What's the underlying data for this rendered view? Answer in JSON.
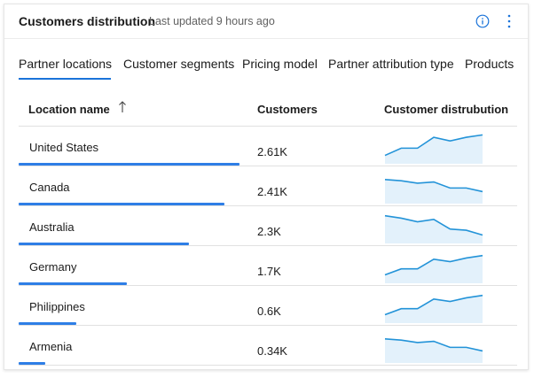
{
  "header": {
    "title": "Customers distribution",
    "updated": "Last updated 9 hours ago",
    "info_icon": "info-icon",
    "more_icon": "more-vertical-icon"
  },
  "colors": {
    "accent": "#1a73d9",
    "bar": "#2e7ee6",
    "spark_line": "#2393d8",
    "spark_fill": "#e3f1fb"
  },
  "tabs": [
    {
      "label": "Partner locations",
      "active": true
    },
    {
      "label": "Customer segments",
      "active": false
    },
    {
      "label": "Pricing model",
      "active": false
    },
    {
      "label": "Partner attribution type",
      "active": false
    },
    {
      "label": "Products",
      "active": false
    }
  ],
  "table": {
    "columns": {
      "location": "Location name",
      "sort_icon": "arrow-up-icon",
      "customers": "Customers",
      "distribution": "Customer distrubution"
    },
    "rows": [
      {
        "name": "United States",
        "value": "2.61K",
        "share": 1.0,
        "trend": [
          0.2,
          0.5,
          0.5,
          0.95,
          0.8,
          0.95,
          1.05
        ]
      },
      {
        "name": "Canada",
        "value": "2.41K",
        "share": 0.93,
        "trend": [
          0.85,
          0.8,
          0.7,
          0.75,
          0.5,
          0.5,
          0.35
        ]
      },
      {
        "name": "Australia",
        "value": "2.3K",
        "share": 0.77,
        "trend": [
          1.0,
          0.9,
          0.75,
          0.85,
          0.45,
          0.4,
          0.2
        ]
      },
      {
        "name": "Germany",
        "value": "1.7K",
        "share": 0.49,
        "trend": [
          0.2,
          0.45,
          0.45,
          0.85,
          0.75,
          0.9,
          1.0
        ]
      },
      {
        "name": "Philippines",
        "value": "0.6K",
        "share": 0.26,
        "trend": [
          0.2,
          0.45,
          0.45,
          0.85,
          0.75,
          0.9,
          1.0
        ]
      },
      {
        "name": "Armenia",
        "value": "0.34K",
        "share": 0.12,
        "trend": [
          0.85,
          0.8,
          0.7,
          0.75,
          0.5,
          0.5,
          0.35
        ]
      }
    ]
  }
}
